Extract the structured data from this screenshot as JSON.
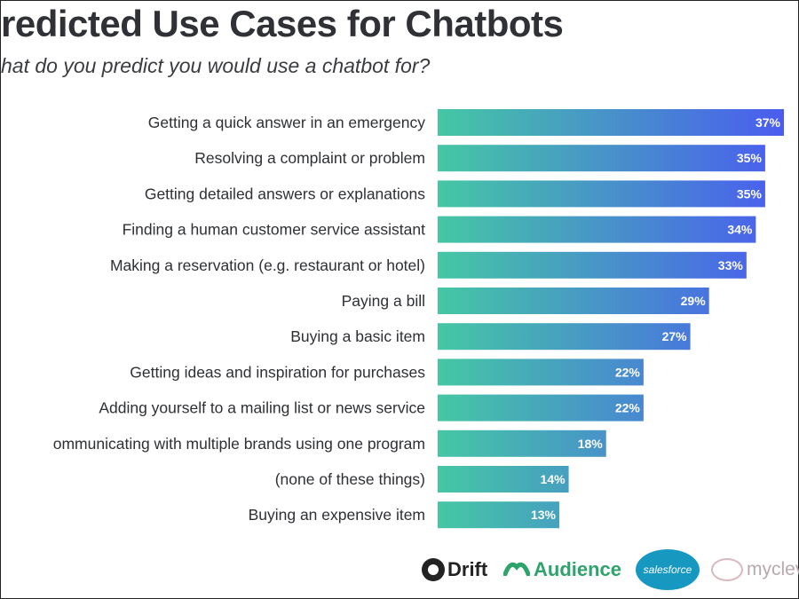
{
  "header": {
    "title": "redicted Use Cases for Chatbots",
    "subtitle": "hat do you predict you would use a chatbot for?"
  },
  "colors": {
    "bar_start": "#45c7a4",
    "bar_end": "#4a5cf0",
    "value_text": "#ffffff"
  },
  "logos": {
    "drift": "Drift",
    "audience": "Audience",
    "salesforce": "salesforce",
    "mycleverpartial": "myclev"
  },
  "chart_data": {
    "type": "bar",
    "orientation": "horizontal",
    "title": "redicted Use Cases for Chatbots",
    "subtitle": "hat do you predict you would use a chatbot for?",
    "categories": [
      "Getting a quick answer in an emergency",
      "Resolving a complaint or problem",
      "Getting detailed answers or explanations",
      "Finding a human customer service assistant",
      "Making a reservation (e.g. restaurant or hotel)",
      "Paying a bill",
      "Buying a basic item",
      "Getting ideas and inspiration for purchases",
      "Adding yourself to a mailing list or news service",
      "ommunicating with multiple brands using one program",
      "(none of these things)",
      "Buying an expensive item"
    ],
    "values": [
      37,
      35,
      35,
      34,
      33,
      29,
      27,
      22,
      22,
      18,
      14,
      13
    ],
    "value_labels": [
      "37%",
      "35%",
      "35%",
      "34%",
      "33%",
      "29%",
      "27%",
      "22%",
      "22%",
      "18%",
      "14%",
      "13%"
    ],
    "unit": "%",
    "xlim": [
      0,
      37
    ],
    "grid": false,
    "legend": "none"
  }
}
